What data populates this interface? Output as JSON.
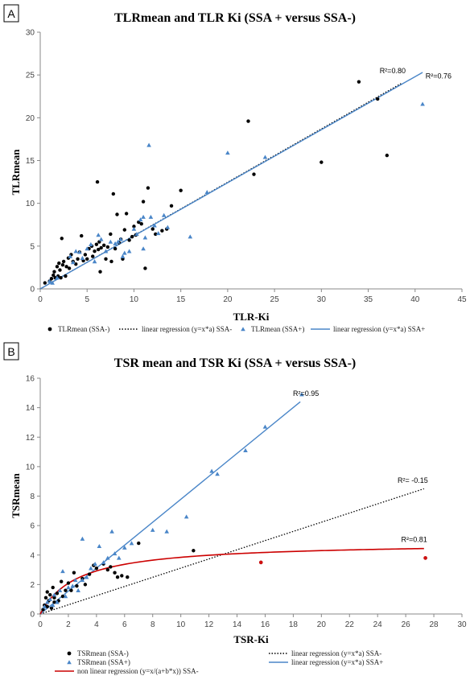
{
  "chart_data": [
    {
      "panel": "A",
      "type": "scatter",
      "title": "TLRmean and TLR Ki (SSA + versus SSA-)",
      "xlabel": "TLR-Ki",
      "ylabel": "TLRmean",
      "xlim": [
        0,
        45
      ],
      "ylim": [
        0,
        30
      ],
      "xticks": [
        "0",
        "5",
        "10",
        "15",
        "20",
        "25",
        "30",
        "35",
        "40",
        "45"
      ],
      "yticks": [
        "0",
        "5",
        "10",
        "15",
        "20",
        "25",
        "30"
      ],
      "grid": false,
      "legend_position": "bottom",
      "annotations": [
        {
          "text": "R²=0.80",
          "x": 37.6,
          "y": 25.2
        },
        {
          "text": "R²=0.76",
          "x": 42.5,
          "y": 24.6
        }
      ],
      "series": [
        {
          "name": "TLRmean (SSA-)",
          "kind": "points",
          "marker": "circle",
          "color": "#000000",
          "points": [
            [
              0.5,
              0.7
            ],
            [
              1.0,
              0.9
            ],
            [
              1.2,
              1.2
            ],
            [
              1.4,
              1.6
            ],
            [
              1.5,
              2.0
            ],
            [
              1.6,
              1.3
            ],
            [
              1.8,
              2.6
            ],
            [
              1.9,
              1.5
            ],
            [
              2.0,
              3.0
            ],
            [
              2.1,
              2.2
            ],
            [
              2.2,
              1.3
            ],
            [
              2.3,
              5.9
            ],
            [
              2.4,
              2.8
            ],
            [
              2.5,
              3.2
            ],
            [
              2.7,
              1.5
            ],
            [
              2.8,
              2.6
            ],
            [
              3.0,
              3.6
            ],
            [
              3.1,
              2.4
            ],
            [
              3.3,
              4.0
            ],
            [
              3.5,
              3.2
            ],
            [
              3.8,
              2.9
            ],
            [
              4.0,
              3.5
            ],
            [
              4.2,
              4.3
            ],
            [
              4.4,
              6.2
            ],
            [
              4.6,
              3.3
            ],
            [
              4.8,
              4.0
            ],
            [
              5.0,
              3.5
            ],
            [
              5.2,
              4.7
            ],
            [
              5.5,
              5.0
            ],
            [
              5.6,
              3.8
            ],
            [
              5.8,
              4.4
            ],
            [
              6.0,
              5.2
            ],
            [
              6.1,
              12.5
            ],
            [
              6.2,
              4.6
            ],
            [
              6.3,
              5.5
            ],
            [
              6.4,
              2.0
            ],
            [
              6.5,
              4.8
            ],
            [
              6.8,
              5.1
            ],
            [
              7.0,
              3.5
            ],
            [
              7.2,
              4.9
            ],
            [
              7.5,
              6.4
            ],
            [
              7.6,
              3.2
            ],
            [
              7.8,
              11.1
            ],
            [
              8.0,
              4.7
            ],
            [
              8.2,
              8.7
            ],
            [
              8.4,
              5.4
            ],
            [
              8.6,
              5.8
            ],
            [
              8.8,
              3.5
            ],
            [
              9.0,
              6.9
            ],
            [
              9.2,
              8.8
            ],
            [
              9.5,
              5.7
            ],
            [
              9.8,
              6.1
            ],
            [
              10.0,
              7.3
            ],
            [
              10.2,
              6.3
            ],
            [
              10.5,
              7.8
            ],
            [
              10.8,
              7.6
            ],
            [
              11.0,
              10.2
            ],
            [
              11.2,
              2.4
            ],
            [
              11.5,
              11.8
            ],
            [
              12.0,
              7.0
            ],
            [
              12.3,
              6.4
            ],
            [
              13.0,
              6.8
            ],
            [
              13.5,
              7.0
            ],
            [
              14.0,
              9.7
            ],
            [
              15.0,
              11.5
            ],
            [
              22.2,
              19.6
            ],
            [
              22.8,
              13.4
            ],
            [
              30.0,
              14.8
            ],
            [
              34.0,
              24.2
            ],
            [
              36.0,
              22.2
            ],
            [
              37.0,
              15.6
            ]
          ]
        },
        {
          "name": "linear regression (y=x*a) SSA-",
          "kind": "line",
          "style": "dotted",
          "color": "#000000",
          "points": [
            [
              0,
              0
            ],
            [
              38.5,
              24.0
            ]
          ]
        },
        {
          "name": "TLRmean (SSA+)",
          "kind": "points",
          "marker": "triangle",
          "color": "#4a86c8",
          "points": [
            [
              1.0,
              0.9
            ],
            [
              1.3,
              0.7
            ],
            [
              1.8,
              1.3
            ],
            [
              3.2,
              3.8
            ],
            [
              3.5,
              3.1
            ],
            [
              3.8,
              4.4
            ],
            [
              4.2,
              4.3
            ],
            [
              4.5,
              3.6
            ],
            [
              5.0,
              4.7
            ],
            [
              5.4,
              5.2
            ],
            [
              5.8,
              3.2
            ],
            [
              6.2,
              6.3
            ],
            [
              6.5,
              5.8
            ],
            [
              7.0,
              4.4
            ],
            [
              7.5,
              5.5
            ],
            [
              8.0,
              5.3
            ],
            [
              8.3,
              5.5
            ],
            [
              8.6,
              5.8
            ],
            [
              8.8,
              3.8
            ],
            [
              9.0,
              4.2
            ],
            [
              9.5,
              4.4
            ],
            [
              10.0,
              7.0
            ],
            [
              10.3,
              6.4
            ],
            [
              10.7,
              8.1
            ],
            [
              11.0,
              8.4
            ],
            [
              11.0,
              4.7
            ],
            [
              11.2,
              6.0
            ],
            [
              11.6,
              16.8
            ],
            [
              11.8,
              8.4
            ],
            [
              12.2,
              7.4
            ],
            [
              12.6,
              6.5
            ],
            [
              13.2,
              8.6
            ],
            [
              13.6,
              7.2
            ],
            [
              16.0,
              6.1
            ],
            [
              17.8,
              11.3
            ],
            [
              20.0,
              15.9
            ],
            [
              24.0,
              15.4
            ],
            [
              40.8,
              21.6
            ]
          ]
        },
        {
          "name": "linear regression (y=x*a) SSA+",
          "kind": "line",
          "style": "solid",
          "color": "#4a86c8",
          "points": [
            [
              0,
              0
            ],
            [
              40.8,
              25.3
            ]
          ]
        }
      ]
    },
    {
      "panel": "B",
      "type": "scatter",
      "title": "TSR mean and TSR Ki (SSA + versus SSA-)",
      "xlabel": "TSR-Ki",
      "ylabel": "TSRmean",
      "xlim": [
        0,
        30
      ],
      "ylim": [
        0,
        16
      ],
      "xticks": [
        "0",
        "2",
        "4",
        "6",
        "8",
        "10",
        "12",
        "14",
        "16",
        "18",
        "20",
        "22",
        "24",
        "26",
        "28",
        "30"
      ],
      "yticks": [
        "0",
        "2",
        "4",
        "6",
        "8",
        "10",
        "12",
        "14",
        "16"
      ],
      "grid": false,
      "legend_position": "bottom",
      "annotations": [
        {
          "text": "R²=0.95",
          "x": 18.9,
          "y": 14.8
        },
        {
          "text": "R²= -0.15",
          "x": 26.5,
          "y": 8.9
        },
        {
          "text": "R²=0.81",
          "x": 26.6,
          "y": 4.9
        }
      ],
      "series": [
        {
          "name": "TSRmean (SSA-)",
          "kind": "points",
          "marker": "circle",
          "color": "#000000",
          "points": [
            [
              0.2,
              0.3
            ],
            [
              0.3,
              0.6
            ],
            [
              0.4,
              1.1
            ],
            [
              0.5,
              0.5
            ],
            [
              0.5,
              1.5
            ],
            [
              0.6,
              0.9
            ],
            [
              0.7,
              1.3
            ],
            [
              0.8,
              0.4
            ],
            [
              0.9,
              1.8
            ],
            [
              1.0,
              0.8
            ],
            [
              1.0,
              1.1
            ],
            [
              1.2,
              1.4
            ],
            [
              1.3,
              0.9
            ],
            [
              1.5,
              2.2
            ],
            [
              1.6,
              1.2
            ],
            [
              1.8,
              1.6
            ],
            [
              2.0,
              2.1
            ],
            [
              2.2,
              1.6
            ],
            [
              2.4,
              2.8
            ],
            [
              2.6,
              1.9
            ],
            [
              3.0,
              2.4
            ],
            [
              3.2,
              2.0
            ],
            [
              3.5,
              2.7
            ],
            [
              3.8,
              3.3
            ],
            [
              4.0,
              3.1
            ],
            [
              4.5,
              3.4
            ],
            [
              4.8,
              3.0
            ],
            [
              5.0,
              3.2
            ],
            [
              5.3,
              2.8
            ],
            [
              5.5,
              2.5
            ],
            [
              5.8,
              2.6
            ],
            [
              6.2,
              2.5
            ],
            [
              7.0,
              4.8
            ],
            [
              10.9,
              4.3
            ],
            [
              15.7,
              3.5
            ],
            [
              27.4,
              3.8
            ]
          ]
        },
        {
          "name": "TSRmean (SSA+)",
          "kind": "points",
          "marker": "triangle",
          "color": "#4a86c8",
          "points": [
            [
              0.3,
              0.5
            ],
            [
              0.5,
              0.8
            ],
            [
              0.7,
              1.0
            ],
            [
              0.9,
              0.6
            ],
            [
              1.0,
              1.3
            ],
            [
              1.2,
              0.8
            ],
            [
              1.4,
              1.6
            ],
            [
              1.6,
              2.9
            ],
            [
              1.8,
              1.2
            ],
            [
              2.0,
              1.8
            ],
            [
              2.3,
              1.9
            ],
            [
              2.5,
              2.3
            ],
            [
              2.7,
              1.6
            ],
            [
              3.0,
              2.3
            ],
            [
              3.0,
              5.1
            ],
            [
              3.3,
              2.5
            ],
            [
              3.6,
              3.1
            ],
            [
              3.9,
              3.4
            ],
            [
              4.2,
              4.6
            ],
            [
              4.5,
              3.5
            ],
            [
              4.8,
              3.8
            ],
            [
              5.1,
              5.6
            ],
            [
              5.3,
              4.1
            ],
            [
              5.6,
              3.8
            ],
            [
              6.0,
              4.5
            ],
            [
              6.5,
              4.8
            ],
            [
              8.0,
              5.7
            ],
            [
              9.0,
              5.6
            ],
            [
              10.4,
              6.6
            ],
            [
              12.2,
              9.7
            ],
            [
              12.6,
              9.5
            ],
            [
              14.6,
              11.1
            ],
            [
              16.0,
              12.7
            ],
            [
              18.6,
              14.9
            ]
          ]
        },
        {
          "name": "linear regression (y=x*a) SSA-",
          "kind": "line",
          "style": "dotted",
          "color": "#000000",
          "points": [
            [
              0,
              0
            ],
            [
              27.3,
              8.5
            ]
          ]
        },
        {
          "name": "linear regression (y=x*a) SSA+",
          "kind": "line",
          "style": "solid",
          "color": "#4a86c8",
          "points": [
            [
              0,
              0
            ],
            [
              18.5,
              14.4
            ]
          ]
        },
        {
          "name": "non linear regression (y=x/(a+b*x)) SSA-",
          "kind": "curve",
          "style": "solid",
          "color": "#cc0000",
          "formula": {
            "a": 0.55,
            "b": 0.205
          },
          "x_range": [
            0,
            27.3
          ]
        }
      ]
    }
  ],
  "panels": {
    "A": {
      "label": "A"
    },
    "B": {
      "label": "B"
    }
  }
}
